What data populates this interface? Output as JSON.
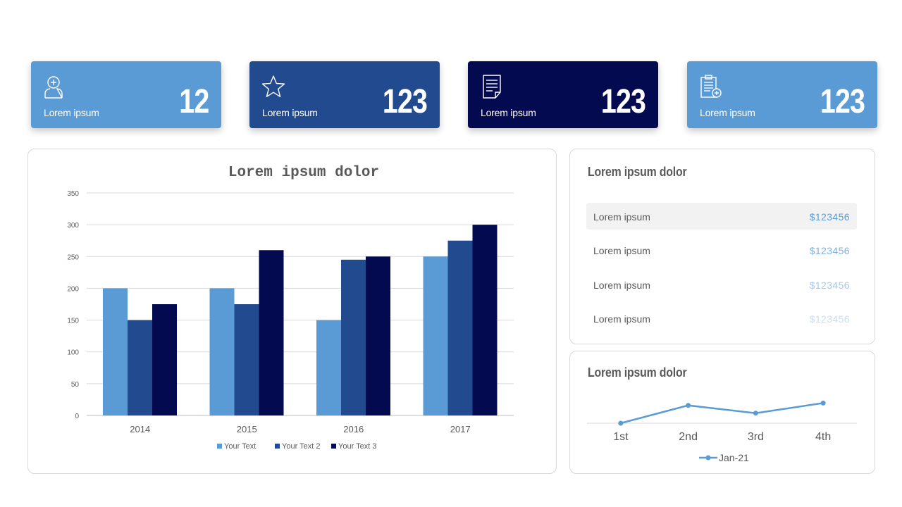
{
  "colors": {
    "light_blue": "#5B9BD5",
    "mid_blue": "#224A8F",
    "navy": "#030A4F"
  },
  "kpis": [
    {
      "label": "Lorem ipsum",
      "value": "12",
      "icon": "user-plus-icon"
    },
    {
      "label": "Lorem ipsum",
      "value": "123",
      "icon": "star-icon"
    },
    {
      "label": "Lorem ipsum",
      "value": "123",
      "icon": "document-icon"
    },
    {
      "label": "Lorem ipsum",
      "value": "123",
      "icon": "clipboard-plus-icon"
    }
  ],
  "list_panel": {
    "title": "Lorem ipsum dolor",
    "rows": [
      {
        "label": "Lorem ipsum",
        "value": "$123456"
      },
      {
        "label": "Lorem ipsum",
        "value": "$123456"
      },
      {
        "label": "Lorem ipsum",
        "value": "$123456"
      },
      {
        "label": "Lorem ipsum",
        "value": "$123456"
      }
    ]
  },
  "line_panel": {
    "title": "Lorem ipsum dolor"
  },
  "chart_data": [
    {
      "type": "bar",
      "title": "Lorem ipsum dolor",
      "categories": [
        "2014",
        "2015",
        "2016",
        "2017"
      ],
      "series": [
        {
          "name": "Your Text",
          "values": [
            200,
            200,
            150,
            250
          ]
        },
        {
          "name": "Your Text 2",
          "values": [
            150,
            175,
            245,
            275
          ]
        },
        {
          "name": "Your Text 3",
          "values": [
            175,
            260,
            250,
            300
          ]
        }
      ],
      "ylim": [
        0,
        350
      ],
      "yticks": [
        0,
        50,
        100,
        150,
        200,
        250,
        300,
        350
      ],
      "grid": true,
      "legend": "bottom"
    },
    {
      "type": "line",
      "title": "Lorem ipsum dolor",
      "categories": [
        "1st",
        "2nd",
        "3rd",
        "4th"
      ],
      "series": [
        {
          "name": "Jan-21",
          "values": [
            0,
            2.3,
            1.3,
            2.6
          ]
        }
      ],
      "grid": false,
      "legend": "bottom"
    }
  ]
}
